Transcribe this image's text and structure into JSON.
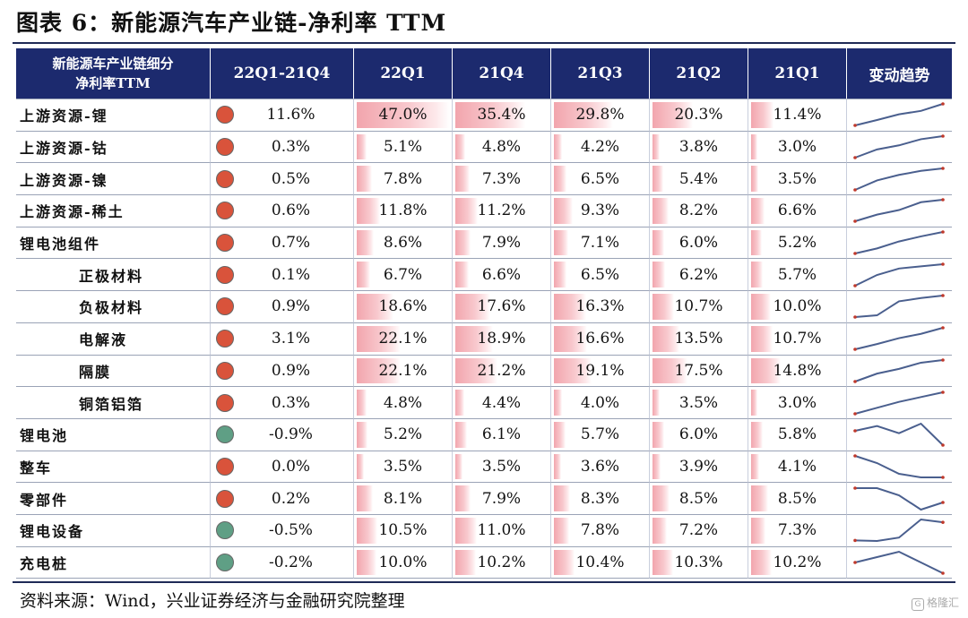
{
  "title": "图表 6：新能源汽车产业链-净利率 TTM",
  "source": "资料来源：Wind，兴业证券经济与金融研究院整理",
  "watermark": "格隆汇",
  "colors": {
    "header_bg": "#1c2a6e",
    "dot_up": "#d9533b",
    "dot_down": "#5f9f85",
    "bar": "#f2a5ad",
    "spark": "#4a5f8e",
    "spark_end": "#c0392b"
  },
  "table": {
    "header": {
      "first_line1": "新能源车产业链细分",
      "first_line2": "净利率TTM",
      "change": "22Q1-21Q4",
      "periods": [
        "22Q1",
        "21Q4",
        "21Q3",
        "21Q2",
        "21Q1"
      ],
      "trend": "变动趋势"
    },
    "rows": [
      {
        "name": "上游资源-锂",
        "indent": false,
        "dir": "up",
        "change": "11.6%",
        "values": [
          "47.0%",
          "35.4%",
          "29.8%",
          "20.3%",
          "11.4%"
        ]
      },
      {
        "name": "上游资源-钴",
        "indent": false,
        "dir": "up",
        "change": "0.3%",
        "values": [
          "5.1%",
          "4.8%",
          "4.2%",
          "3.8%",
          "3.0%"
        ]
      },
      {
        "name": "上游资源-镍",
        "indent": false,
        "dir": "up",
        "change": "0.5%",
        "values": [
          "7.8%",
          "7.3%",
          "6.5%",
          "5.4%",
          "3.5%"
        ]
      },
      {
        "name": "上游资源-稀土",
        "indent": false,
        "dir": "up",
        "change": "0.6%",
        "values": [
          "11.8%",
          "11.2%",
          "9.3%",
          "8.2%",
          "6.6%"
        ]
      },
      {
        "name": "锂电池组件",
        "indent": false,
        "dir": "up",
        "change": "0.7%",
        "values": [
          "8.6%",
          "7.9%",
          "7.1%",
          "6.0%",
          "5.2%"
        ]
      },
      {
        "name": "正极材料",
        "indent": true,
        "dir": "up",
        "change": "0.1%",
        "values": [
          "6.7%",
          "6.6%",
          "6.5%",
          "6.2%",
          "5.7%"
        ]
      },
      {
        "name": "负极材料",
        "indent": true,
        "dir": "up",
        "change": "0.9%",
        "values": [
          "18.6%",
          "17.6%",
          "16.3%",
          "10.7%",
          "10.0%"
        ]
      },
      {
        "name": "电解液",
        "indent": true,
        "dir": "up",
        "change": "3.1%",
        "values": [
          "22.1%",
          "18.9%",
          "16.6%",
          "13.5%",
          "10.7%"
        ]
      },
      {
        "name": "隔膜",
        "indent": true,
        "dir": "up",
        "change": "0.9%",
        "values": [
          "22.1%",
          "21.2%",
          "19.1%",
          "17.5%",
          "14.8%"
        ]
      },
      {
        "name": "铜箔铝箔",
        "indent": true,
        "dir": "up",
        "change": "0.3%",
        "values": [
          "4.8%",
          "4.4%",
          "4.0%",
          "3.5%",
          "3.0%"
        ]
      },
      {
        "name": "锂电池",
        "indent": false,
        "dir": "down",
        "change": "-0.9%",
        "values": [
          "5.2%",
          "6.1%",
          "5.7%",
          "6.0%",
          "5.8%"
        ]
      },
      {
        "name": "整车",
        "indent": false,
        "dir": "up",
        "change": "0.0%",
        "values": [
          "3.5%",
          "3.5%",
          "3.6%",
          "3.9%",
          "4.1%"
        ]
      },
      {
        "name": "零部件",
        "indent": false,
        "dir": "up",
        "change": "0.2%",
        "values": [
          "8.1%",
          "7.9%",
          "8.3%",
          "8.5%",
          "8.5%"
        ]
      },
      {
        "name": "锂电设备",
        "indent": false,
        "dir": "down",
        "change": "-0.5%",
        "values": [
          "10.5%",
          "11.0%",
          "7.8%",
          "7.2%",
          "7.3%"
        ]
      },
      {
        "name": "充电桩",
        "indent": false,
        "dir": "down",
        "change": "-0.2%",
        "values": [
          "10.0%",
          "10.2%",
          "10.4%",
          "10.3%",
          "10.2%"
        ]
      }
    ]
  }
}
